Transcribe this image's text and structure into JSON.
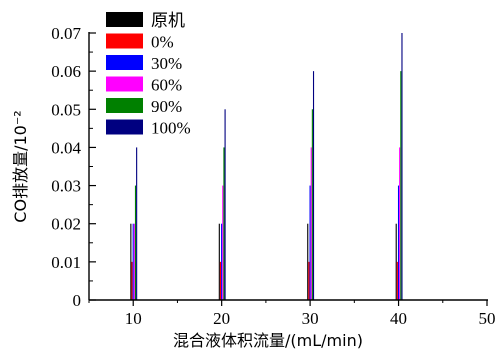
{
  "chart_data": {
    "type": "bar",
    "xlabel": "混合液体积流量/(mL/min)",
    "ylabel": "CO排放量/10⁻²",
    "xlim": [
      5,
      50
    ],
    "ylim": [
      0,
      0.07
    ],
    "x_ticks": [
      10,
      20,
      30,
      40,
      50
    ],
    "y_ticks": [
      0,
      0.01,
      0.02,
      0.03,
      0.04,
      0.05,
      0.06,
      0.07
    ],
    "y_tick_labels": [
      "0",
      "0.01",
      "0.02",
      "0.03",
      "0.04",
      "0.05",
      "0.06",
      "0.07"
    ],
    "categories": [
      10,
      20,
      30,
      40
    ],
    "series": [
      {
        "name": "原机",
        "color": "#000000",
        "values": [
          0.02,
          0.02,
          0.02,
          0.02
        ]
      },
      {
        "name": "0%",
        "color": "#ff0000",
        "values": [
          0.01,
          0.01,
          0.01,
          0.01
        ]
      },
      {
        "name": "30%",
        "color": "#0000ff",
        "values": [
          0.02,
          0.02,
          0.03,
          0.03
        ]
      },
      {
        "name": "60%",
        "color": "#ff00ff",
        "values": [
          0.02,
          0.03,
          0.04,
          0.04
        ]
      },
      {
        "name": "90%",
        "color": "#008000",
        "values": [
          0.03,
          0.04,
          0.05,
          0.06
        ]
      },
      {
        "name": "100%",
        "color": "#000080",
        "values": [
          0.04,
          0.05,
          0.06,
          0.07
        ]
      }
    ],
    "legend_position": "top-left",
    "grid": false
  }
}
